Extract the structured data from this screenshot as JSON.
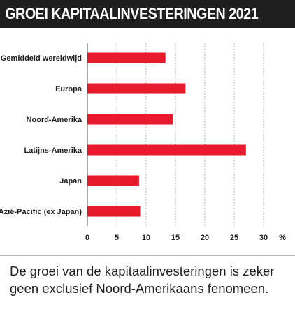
{
  "title": "GROEI KAPITAALINVESTERINGEN 2021",
  "caption": "De groei van de kapitaalinvesteringen is zeker geen exclusief Noord-Amerikaans fenomeen.",
  "colors": {
    "bar": "#e8192c",
    "title_bg": "#1f1f1f",
    "grid": "#9a9a9a"
  },
  "chart_data": {
    "type": "bar",
    "orientation": "horizontal",
    "categories": [
      "Gemiddeld wereldwijd",
      "Europa",
      "Noord-Amerika",
      "Latijns-Amerika",
      "Japan",
      "Azië-Pacific (ex Japan)"
    ],
    "values": [
      13.3,
      16.7,
      14.6,
      27.0,
      8.8,
      9.0
    ],
    "xlim": [
      0,
      30
    ],
    "xticks": [
      0,
      5,
      10,
      15,
      20,
      25,
      30
    ],
    "xunit": "%",
    "grid": "vertical dashed"
  }
}
